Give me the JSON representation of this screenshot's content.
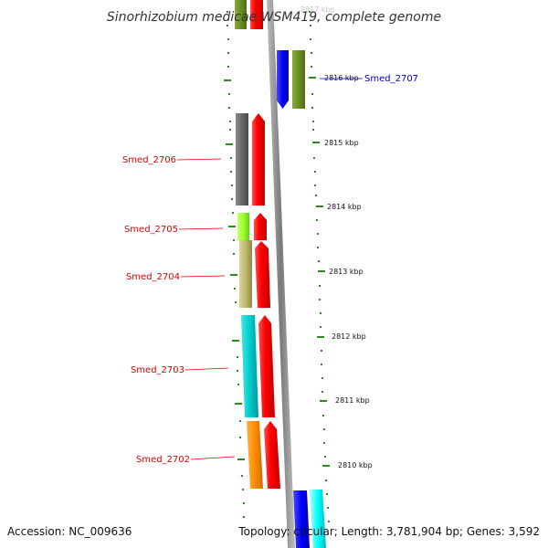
{
  "title": "Sinorhizobium medicae WSM419, complete genome",
  "accession": "Accession: NC_009636",
  "summary": "Topology: circular; Length: 3,781,904 bp; Genes: 3,592",
  "top_clipped_label": "2817 kbp",
  "ticks": [
    "2816 kbp",
    "2815 kbp",
    "2814 kbp",
    "2813 kbp",
    "2812 kbp",
    "2811 kbp",
    "2810 kbp"
  ],
  "genes": {
    "smed_2707": "Smed_2707",
    "smed_2706": "Smed_2706",
    "smed_2705": "Smed_2705",
    "smed_2704": "Smed_2704",
    "smed_2703": "Smed_2703",
    "smed_2702": "Smed_2702"
  },
  "colors": {
    "label_red": "#e00000",
    "label_blue": "#0000c0",
    "tick_green": "#2a8a1a",
    "backbone": "#909090",
    "cds_red": "#ff0000",
    "gray": "#6b6b6b",
    "olive": "#6b8e23",
    "blue": "#0000ff",
    "lime": "#99ff33",
    "khaki": "#bdb76b",
    "cyan": "#00cccc",
    "orange": "#ff8c00",
    "light_cyan": "#00ffff"
  }
}
